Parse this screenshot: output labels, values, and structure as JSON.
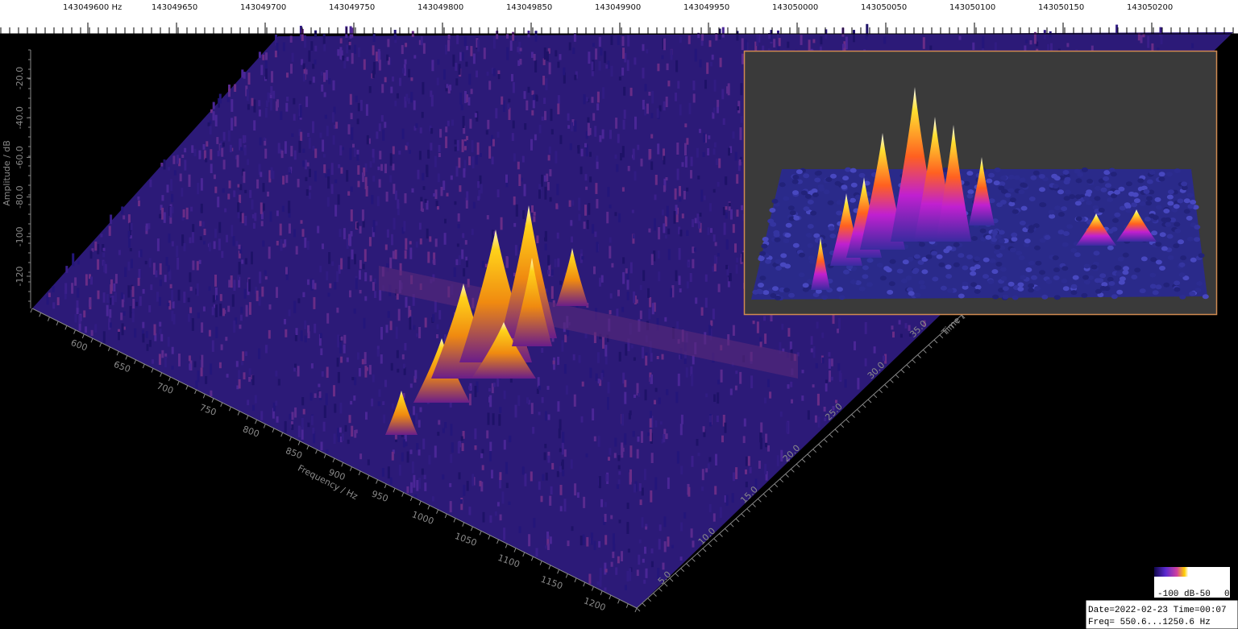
{
  "ruler": {
    "labels": [
      "143049600 Hz",
      "143049650",
      "143049700",
      "143049750",
      "143049800",
      "143049850",
      "143049900",
      "143049950",
      "143050000",
      "143050050",
      "143050100",
      "143050150",
      "143050200"
    ]
  },
  "amplitude_axis": {
    "title": "Amplitude / dB",
    "ticks": [
      "-20.0",
      "-40.0",
      "-60.0",
      "-80.0",
      "-100",
      "-120"
    ]
  },
  "frequency_axis": {
    "title": "Frequency / Hz",
    "ticks": [
      "600",
      "650",
      "700",
      "750",
      "800",
      "850",
      "900",
      "950",
      "1000",
      "1050",
      "1100",
      "1150",
      "1200"
    ]
  },
  "time_axis": {
    "title": "Time /",
    "ticks": [
      "5.0",
      "10.0",
      "15.0",
      "20.0",
      "25.0",
      "30.0",
      "35.0"
    ]
  },
  "colorbar": {
    "labels": [
      "-100 dB",
      "-50",
      "0"
    ]
  },
  "status": {
    "line1": "Date=2022-02-23 Time=00:07",
    "line2": "Freq= 550.6...1250.6 Hz"
  }
}
